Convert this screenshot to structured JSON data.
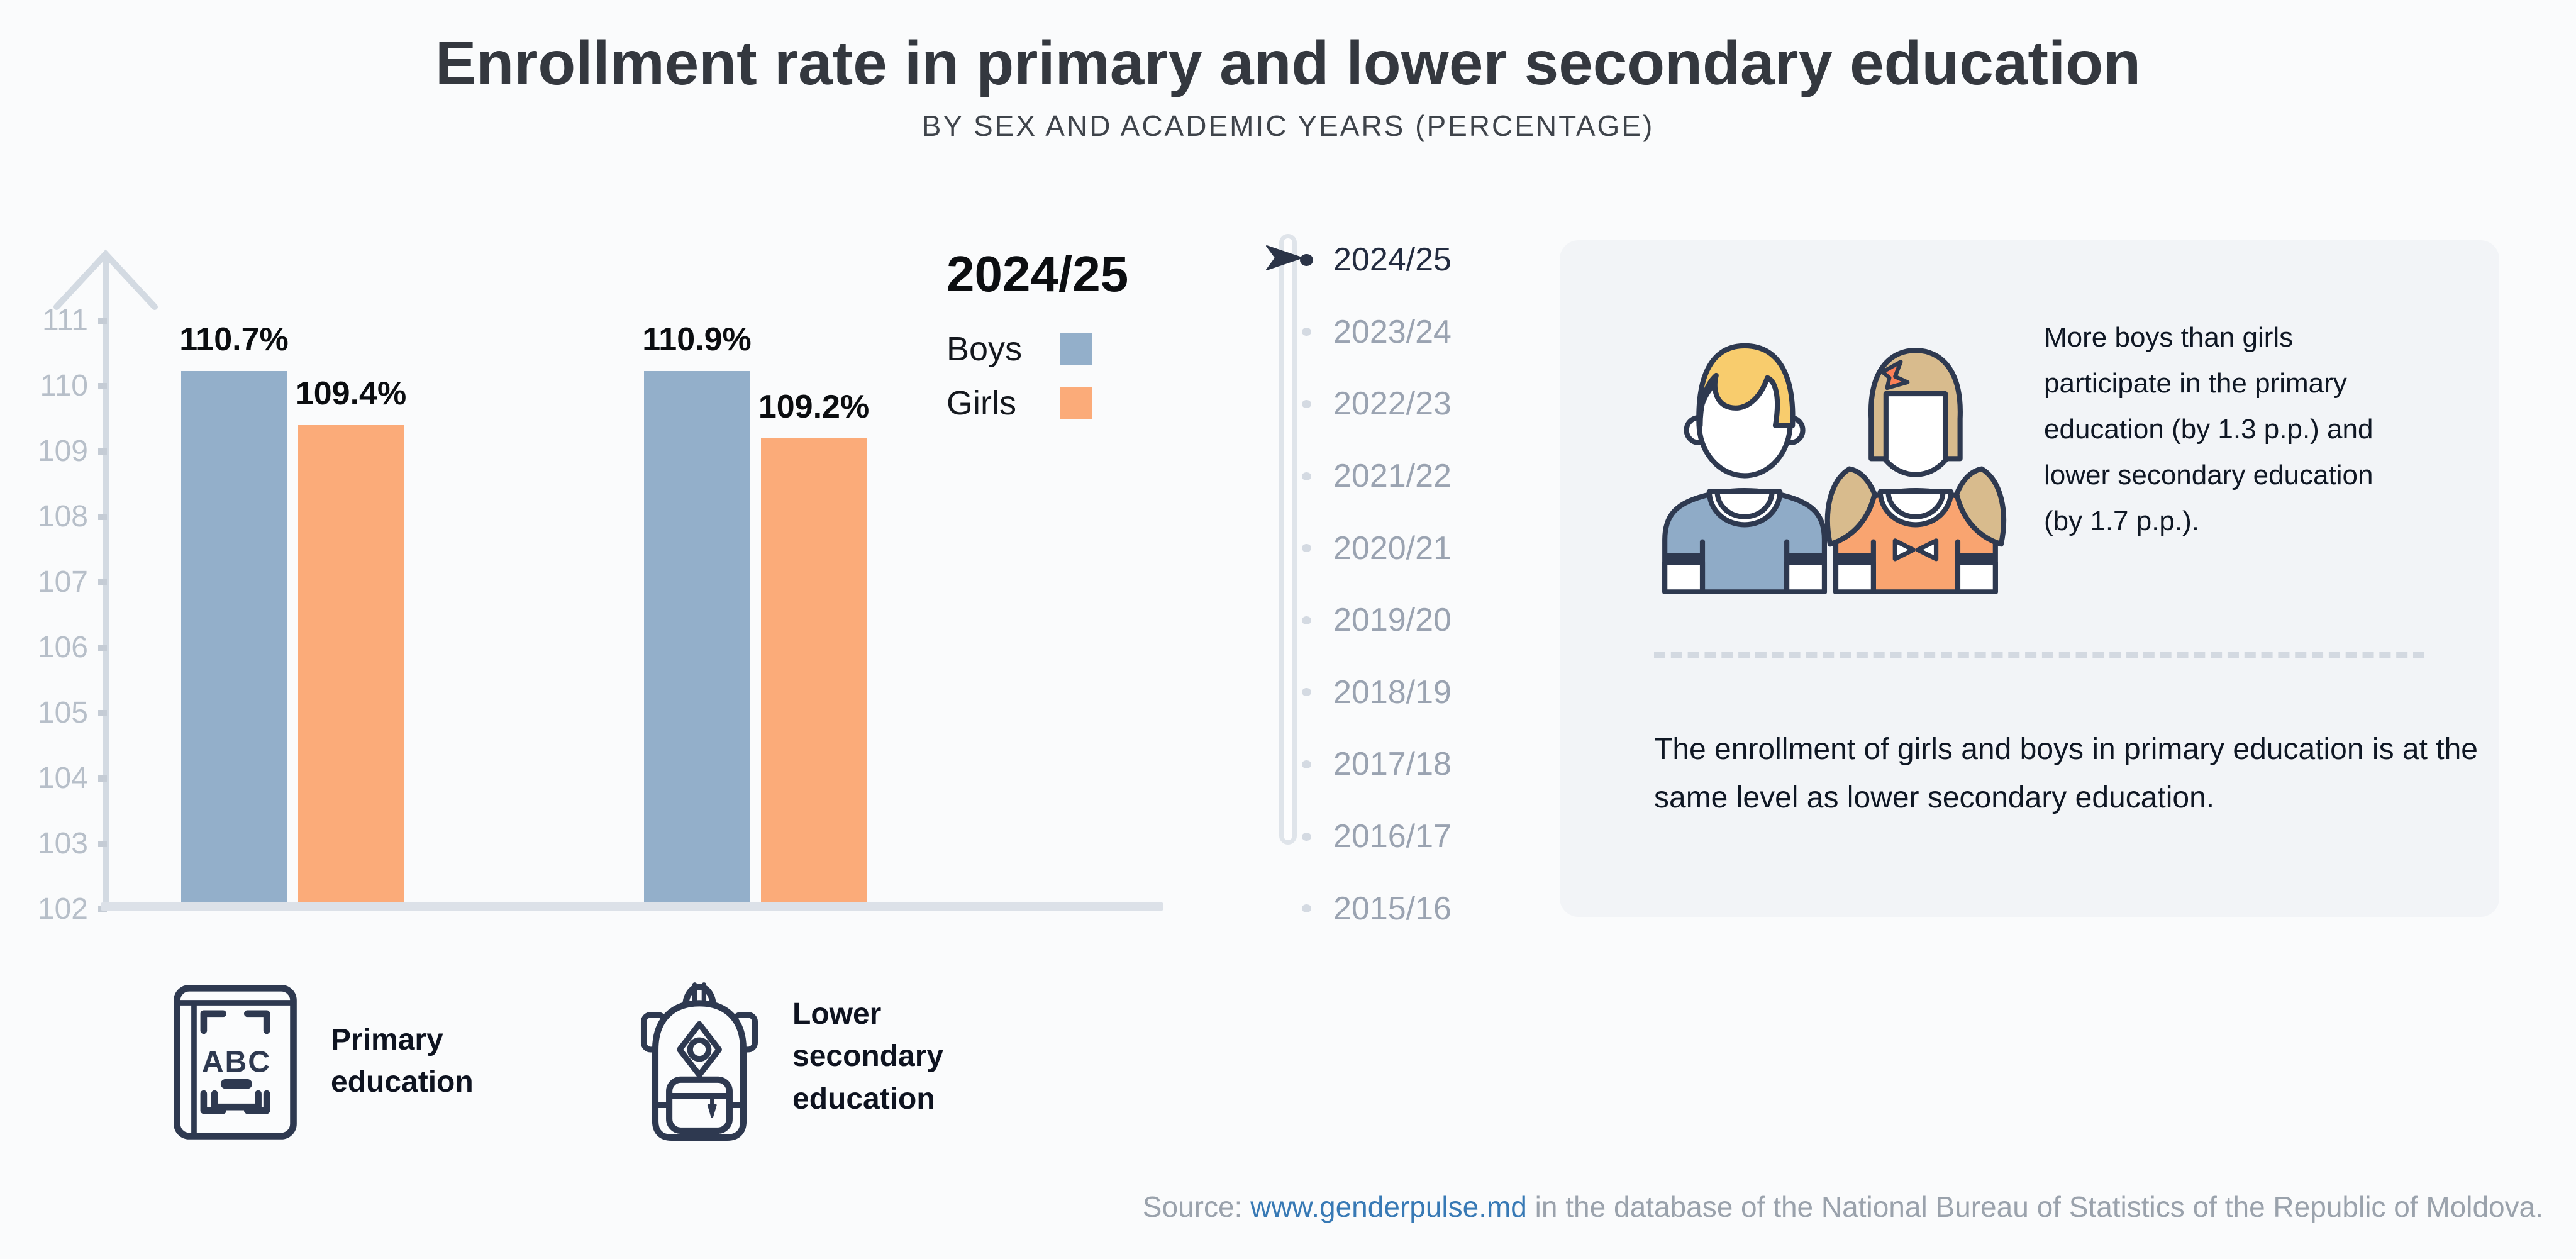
{
  "header": {
    "title": "Enrollment rate in primary and lower secondary education",
    "subtitle": "BY SEX AND ACADEMIC YEARS (PERCENTAGE)"
  },
  "chart_data": {
    "type": "bar",
    "title": "Enrollment rate in primary and lower secondary education",
    "subtitle": "BY SEX AND ACADEMIC YEARS (PERCENTAGE)",
    "categories": [
      "Primary education",
      "Lower secondary education"
    ],
    "series": [
      {
        "name": "Boys",
        "color": "#93afca",
        "values": [
          110.7,
          110.9
        ],
        "labels": [
          "110.7%",
          "110.9%"
        ]
      },
      {
        "name": "Girls",
        "color": "#fbab79",
        "values": [
          109.4,
          109.2
        ],
        "labels": [
          "109.4%",
          "109.2%"
        ]
      }
    ],
    "ylim": [
      102,
      111
    ],
    "yticks": [
      "111",
      "110",
      "109",
      "108",
      "107",
      "106",
      "105",
      "104",
      "103",
      "102"
    ],
    "unit": "percent",
    "grid": false,
    "legend": {
      "title": "2024/25",
      "items": [
        "Boys",
        "Girls"
      ],
      "position": "right-of-bars"
    }
  },
  "timeline": {
    "active_year": "2024/25",
    "years": [
      "2024/25",
      "2023/24",
      "2022/23",
      "2021/22",
      "2020/21",
      "2019/20",
      "2018/19",
      "2017/18",
      "2016/17",
      "2015/16"
    ]
  },
  "insight_panel": {
    "paragraph1": "More boys than girls participate in the primary education (by 1.3 p.p.) and lower secondary education (by 1.7 p.p.).",
    "paragraph2": "The enrollment of girls and boys in primary education is at the same level as lower secondary education."
  },
  "categories": [
    {
      "label": "Primary education",
      "icon": "book-abc-icon",
      "icon_text": "ABC"
    },
    {
      "label": "Lower secondary education",
      "icon": "backpack-icon"
    }
  ],
  "footer": {
    "prefix": "Source: ",
    "link": "www.genderpulse.md",
    "suffix": " in the database of the National Bureau of Statistics of the Republic of Moldova."
  },
  "colors": {
    "boys": "#93afca",
    "girls": "#fbab79",
    "navy_outline": "#2e3950",
    "panel_bg": "#f2f4f7",
    "page_bg": "#fafbfc",
    "link": "#3779b5"
  }
}
